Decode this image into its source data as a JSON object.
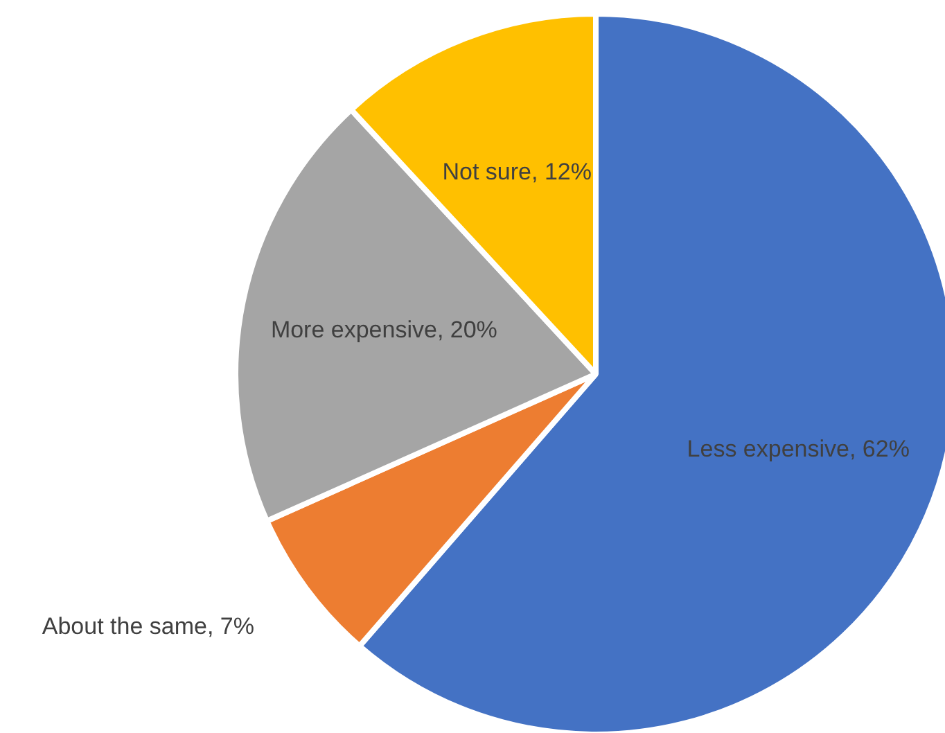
{
  "chart_data": {
    "type": "pie",
    "categories": [
      "Less expensive",
      "About the same",
      "More expensive",
      "Not sure"
    ],
    "values": [
      62,
      7,
      20,
      12
    ],
    "colors": [
      "#4472c4",
      "#ed7d31",
      "#a5a5a5",
      "#ffc000"
    ],
    "value_labels": [
      "62%",
      "7%",
      "20%",
      "12%"
    ],
    "legend": false
  }
}
